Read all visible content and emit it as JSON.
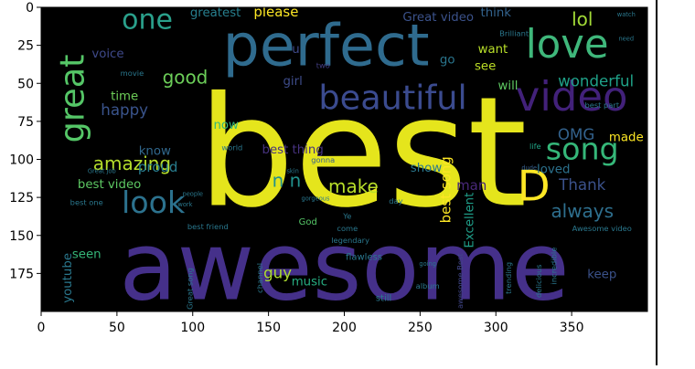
{
  "chart_data": {
    "type": "image",
    "title": "",
    "xlabel": "",
    "ylabel": "",
    "xlim": [
      0,
      400
    ],
    "ylim": [
      200,
      0
    ],
    "x_ticks": [
      0,
      50,
      100,
      150,
      200,
      250,
      300,
      350
    ],
    "y_ticks": [
      0,
      25,
      50,
      75,
      100,
      125,
      150,
      175
    ],
    "grid": false,
    "background": "#000000",
    "words": [
      {
        "text": "best",
        "x": 212,
        "y": 130,
        "size": 100,
        "rotate": 0,
        "color": "#e5e51c"
      },
      {
        "text": "awesome",
        "x": 200,
        "y": 192,
        "size": 62,
        "rotate": 0,
        "color": "#45308a"
      },
      {
        "text": "perfect",
        "x": 188,
        "y": 38,
        "size": 38,
        "rotate": 0,
        "color": "#2f6b8e"
      },
      {
        "text": "beautiful",
        "x": 232,
        "y": 67,
        "size": 22,
        "rotate": 0,
        "color": "#3b4b8f"
      },
      {
        "text": "video",
        "x": 350,
        "y": 68,
        "size": 27,
        "rotate": 0,
        "color": "#42217a"
      },
      {
        "text": "love",
        "x": 347,
        "y": 33,
        "size": 26,
        "rotate": 0,
        "color": "#3fb77b"
      },
      {
        "text": "one",
        "x": 70,
        "y": 14,
        "size": 18,
        "rotate": 0,
        "color": "#2aa08b"
      },
      {
        "text": "great",
        "x": 28,
        "y": 60,
        "size": 22,
        "rotate": -90,
        "color": "#55c667"
      },
      {
        "text": "song",
        "x": 357,
        "y": 100,
        "size": 20,
        "rotate": 0,
        "color": "#35b779"
      },
      {
        "text": "look",
        "x": 74,
        "y": 135,
        "size": 20,
        "rotate": 0,
        "color": "#2c728e"
      },
      {
        "text": "D",
        "x": 325,
        "y": 127,
        "size": 28,
        "rotate": 0,
        "color": "#fde725"
      },
      {
        "text": "amazing",
        "x": 60,
        "y": 107,
        "size": 12,
        "rotate": 0,
        "color": "#b5de2b"
      },
      {
        "text": "happy",
        "x": 55,
        "y": 71,
        "size": 10,
        "rotate": 0,
        "color": "#3a548c"
      },
      {
        "text": "good",
        "x": 95,
        "y": 50,
        "size": 12,
        "rotate": 0,
        "color": "#6cce59"
      },
      {
        "text": "make",
        "x": 206,
        "y": 122,
        "size": 12,
        "rotate": 0,
        "color": "#b8de29"
      },
      {
        "text": "lol",
        "x": 357,
        "y": 12,
        "size": 12,
        "rotate": 0,
        "color": "#a2da37"
      },
      {
        "text": "Thank",
        "x": 357,
        "y": 120,
        "size": 10,
        "rotate": 0,
        "color": "#3b528b"
      },
      {
        "text": "always",
        "x": 357,
        "y": 138,
        "size": 12,
        "rotate": 0,
        "color": "#2e6f8e"
      },
      {
        "text": "OMG",
        "x": 353,
        "y": 87,
        "size": 10,
        "rotate": 0,
        "color": "#33628d"
      },
      {
        "text": "made",
        "x": 386,
        "y": 88,
        "size": 8,
        "rotate": 0,
        "color": "#fde725"
      },
      {
        "text": "wonderful",
        "x": 366,
        "y": 52,
        "size": 10,
        "rotate": 0,
        "color": "#1fa188"
      },
      {
        "text": "best video",
        "x": 45,
        "y": 119,
        "size": 8,
        "rotate": 0,
        "color": "#5dc863"
      },
      {
        "text": "best one",
        "x": 30,
        "y": 130,
        "size": 5,
        "rotate": 0,
        "color": "#2a788e"
      },
      {
        "text": "greatest",
        "x": 115,
        "y": 6,
        "size": 8,
        "rotate": 0,
        "color": "#277f8e"
      },
      {
        "text": "please",
        "x": 155,
        "y": 6,
        "size": 9,
        "rotate": 0,
        "color": "#fde725"
      },
      {
        "text": "Great video",
        "x": 262,
        "y": 9,
        "size": 8,
        "rotate": 0,
        "color": "#3b528b"
      },
      {
        "text": "think",
        "x": 300,
        "y": 6,
        "size": 8,
        "rotate": 0,
        "color": "#33638d"
      },
      {
        "text": "voice",
        "x": 44,
        "y": 33,
        "size": 8,
        "rotate": 0,
        "color": "#3e4989"
      },
      {
        "text": "time",
        "x": 55,
        "y": 61,
        "size": 8,
        "rotate": 0,
        "color": "#6ece58"
      },
      {
        "text": "know",
        "x": 75,
        "y": 97,
        "size": 8,
        "rotate": 0,
        "color": "#31688e"
      },
      {
        "text": "proud",
        "x": 77,
        "y": 108,
        "size": 9,
        "rotate": 0,
        "color": "#287d8e"
      },
      {
        "text": "now",
        "x": 122,
        "y": 80,
        "size": 8,
        "rotate": 0,
        "color": "#35b779"
      },
      {
        "text": "best thing",
        "x": 166,
        "y": 96,
        "size": 8,
        "rotate": 0,
        "color": "#46327e"
      },
      {
        "text": "n n",
        "x": 162,
        "y": 118,
        "size": 12,
        "rotate": 0,
        "color": "#21918c"
      },
      {
        "text": "best song",
        "x": 270,
        "y": 120,
        "size": 9,
        "rotate": -90,
        "color": "#fde725"
      },
      {
        "text": "Excellent",
        "x": 285,
        "y": 140,
        "size": 8,
        "rotate": -90,
        "color": "#1f9e89"
      },
      {
        "text": "man",
        "x": 284,
        "y": 120,
        "size": 9,
        "rotate": 0,
        "color": "#482878"
      },
      {
        "text": "show",
        "x": 254,
        "y": 108,
        "size": 8,
        "rotate": 0,
        "color": "#2a788e"
      },
      {
        "text": "loved",
        "x": 338,
        "y": 109,
        "size": 8,
        "rotate": 0,
        "color": "#2c728e"
      },
      {
        "text": "go",
        "x": 268,
        "y": 37,
        "size": 8,
        "rotate": 0,
        "color": "#2a768e"
      },
      {
        "text": "want",
        "x": 298,
        "y": 30,
        "size": 8,
        "rotate": 0,
        "color": "#b8de29"
      },
      {
        "text": "see",
        "x": 293,
        "y": 41,
        "size": 8,
        "rotate": 0,
        "color": "#bddf26"
      },
      {
        "text": "will",
        "x": 308,
        "y": 54,
        "size": 8,
        "rotate": 0,
        "color": "#5ec962"
      },
      {
        "text": "girl",
        "x": 166,
        "y": 51,
        "size": 8,
        "rotate": 0,
        "color": "#3e4c8a"
      },
      {
        "text": "u",
        "x": 168,
        "y": 30,
        "size": 8,
        "rotate": 0,
        "color": "#3e4989"
      },
      {
        "text": "guy",
        "x": 156,
        "y": 178,
        "size": 10,
        "rotate": 0,
        "color": "#addc30"
      },
      {
        "text": "music",
        "x": 177,
        "y": 183,
        "size": 8,
        "rotate": 0,
        "color": "#27ad81"
      },
      {
        "text": "seen",
        "x": 30,
        "y": 165,
        "size": 8,
        "rotate": 0,
        "color": "#35b779"
      },
      {
        "text": "youtube",
        "x": 20,
        "y": 178,
        "size": 8,
        "rotate": -90,
        "color": "#2a788e"
      },
      {
        "text": "keep",
        "x": 370,
        "y": 178,
        "size": 8,
        "rotate": 0,
        "color": "#3b528b"
      },
      {
        "text": "God",
        "x": 176,
        "y": 143,
        "size": 6,
        "rotate": 0,
        "color": "#55c667"
      },
      {
        "text": "flawless",
        "x": 213,
        "y": 166,
        "size": 6,
        "rotate": 0,
        "color": "#2a788e"
      },
      {
        "text": "still",
        "x": 226,
        "y": 193,
        "size": 6,
        "rotate": 0,
        "color": "#2a788e"
      },
      {
        "text": "awesome Best",
        "x": 278,
        "y": 180,
        "size": 5,
        "rotate": -90,
        "color": "#404688"
      },
      {
        "text": "incredible",
        "x": 340,
        "y": 170,
        "size": 5,
        "rotate": -90,
        "color": "#2a788e"
      },
      {
        "text": "delicious",
        "x": 330,
        "y": 180,
        "size": 5,
        "rotate": -90,
        "color": "#2a788e"
      },
      {
        "text": "two",
        "x": 186,
        "y": 40,
        "size": 5,
        "rotate": 0,
        "color": "#433e85"
      },
      {
        "text": "world",
        "x": 126,
        "y": 94,
        "size": 5,
        "rotate": 0,
        "color": "#2a788e"
      },
      {
        "text": "gonna",
        "x": 186,
        "y": 102,
        "size": 5,
        "rotate": 0,
        "color": "#355f8d"
      },
      {
        "text": "life",
        "x": 326,
        "y": 93,
        "size": 5,
        "rotate": 0,
        "color": "#20a486"
      },
      {
        "text": "dude",
        "x": 322,
        "y": 107,
        "size": 4,
        "rotate": 0,
        "color": "#355f8d"
      },
      {
        "text": "day",
        "x": 234,
        "y": 129,
        "size": 5,
        "rotate": 0,
        "color": "#2a788e"
      },
      {
        "text": "Ye",
        "x": 202,
        "y": 139,
        "size": 5,
        "rotate": 0,
        "color": "#2a788e"
      },
      {
        "text": "come",
        "x": 202,
        "y": 147,
        "size": 5,
        "rotate": 0,
        "color": "#2a788e"
      },
      {
        "text": "legendary",
        "x": 204,
        "y": 155,
        "size": 5,
        "rotate": 0,
        "color": "#2a788e"
      },
      {
        "text": "best part",
        "x": 370,
        "y": 66,
        "size": 5,
        "rotate": 0,
        "color": "#2a788e"
      },
      {
        "text": "Brilliant",
        "x": 312,
        "y": 19,
        "size": 5,
        "rotate": 0,
        "color": "#2a788e"
      },
      {
        "text": "best friend",
        "x": 110,
        "y": 146,
        "size": 5,
        "rotate": 0,
        "color": "#2a788e"
      },
      {
        "text": "channel",
        "x": 146,
        "y": 178,
        "size": 5,
        "rotate": -90,
        "color": "#2a788e"
      },
      {
        "text": "Great song",
        "x": 100,
        "y": 185,
        "size": 5,
        "rotate": -90,
        "color": "#2a788e"
      },
      {
        "text": "Awesome video",
        "x": 370,
        "y": 147,
        "size": 5,
        "rotate": 0,
        "color": "#2a788e"
      },
      {
        "text": "trending",
        "x": 310,
        "y": 178,
        "size": 5,
        "rotate": -90,
        "color": "#2a788e"
      },
      {
        "text": "album",
        "x": 255,
        "y": 185,
        "size": 5,
        "rotate": 0,
        "color": "#2a788e"
      },
      {
        "text": "movie",
        "x": 60,
        "y": 45,
        "size": 5,
        "rotate": 0,
        "color": "#2a788e"
      },
      {
        "text": "Great job",
        "x": 40,
        "y": 109,
        "size": 4,
        "rotate": 0,
        "color": "#2a788e"
      },
      {
        "text": "gorgeous",
        "x": 181,
        "y": 127,
        "size": 4,
        "rotate": 0,
        "color": "#2a788e"
      },
      {
        "text": "going",
        "x": 255,
        "y": 170,
        "size": 4,
        "rotate": 0,
        "color": "#2a788e"
      },
      {
        "text": "people",
        "x": 100,
        "y": 124,
        "size": 4,
        "rotate": 0,
        "color": "#2a788e"
      },
      {
        "text": "work",
        "x": 95,
        "y": 131,
        "size": 4,
        "rotate": 0,
        "color": "#2a788e"
      },
      {
        "text": "skin",
        "x": 166,
        "y": 109,
        "size": 4,
        "rotate": 0,
        "color": "#2a788e"
      },
      {
        "text": "need",
        "x": 386,
        "y": 22,
        "size": 4,
        "rotate": 0,
        "color": "#2a788e"
      },
      {
        "text": "watch",
        "x": 386,
        "y": 6,
        "size": 4,
        "rotate": 0,
        "color": "#2a788e"
      }
    ]
  }
}
